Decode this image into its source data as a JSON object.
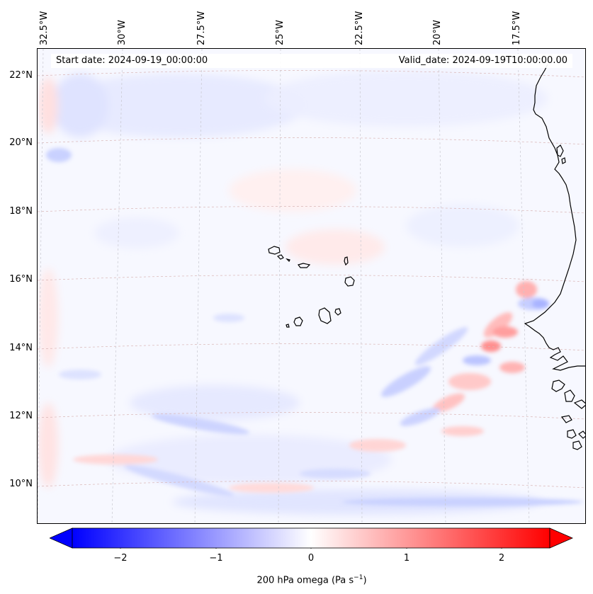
{
  "header": {
    "start_date": "Start date: 2024-09-19_00:00:00",
    "valid_date": "Valid_date: 2024-09-19T10:00:00.00"
  },
  "axes": {
    "latitude_labels": [
      "22°N",
      "20°N",
      "18°N",
      "16°N",
      "14°N",
      "12°N",
      "10°N"
    ],
    "longitude_labels": [
      "32.5°W",
      "30°W",
      "27.5°W",
      "25°W",
      "22.5°W",
      "20°W",
      "17.5°W"
    ]
  },
  "colorbar": {
    "ticks": [
      "−2",
      "−1",
      "0",
      "1",
      "2"
    ],
    "title_main": "200 hPa omega (Pa s",
    "title_exp": "−1",
    "title_close": ")",
    "range": [
      -2.5,
      2.5
    ],
    "colors": {
      "negative": "#0000ff",
      "zero": "#ffffff",
      "positive": "#ff0000"
    },
    "extend": "both"
  },
  "map": {
    "projection": "lambert-conformal",
    "gridlines": true,
    "field": "omega-200hPa",
    "coastline_color": "#000000",
    "gridline_color": "#d9b5b5"
  }
}
